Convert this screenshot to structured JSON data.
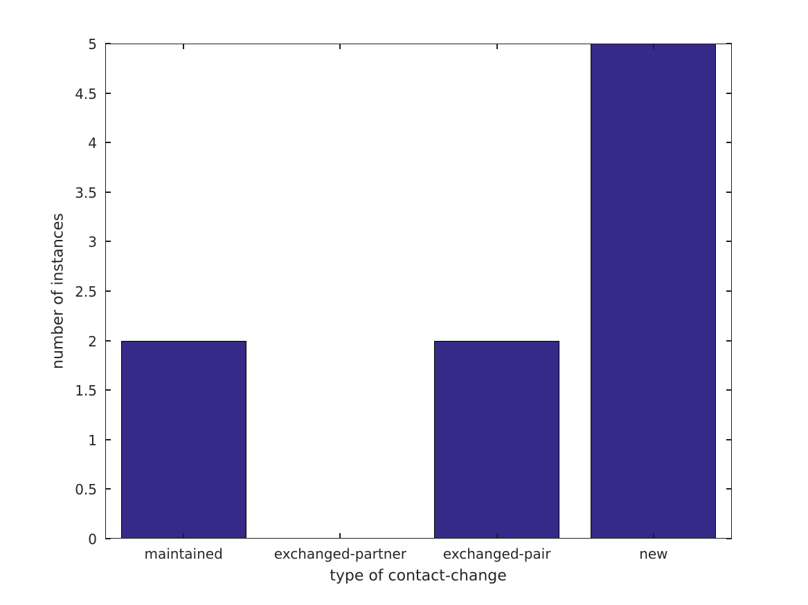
{
  "chart_data": {
    "type": "bar",
    "categories": [
      "maintained",
      "exchanged-partner",
      "exchanged-pair",
      "new"
    ],
    "values": [
      2,
      0,
      2,
      5
    ],
    "title": "",
    "xlabel": "type of contact-change",
    "ylabel": "number of instances",
    "ylim": [
      0,
      5
    ],
    "ytick_step": 0.5,
    "ytick_labels": [
      "0",
      "0.5",
      "1",
      "1.5",
      "2",
      "2.5",
      "3",
      "3.5",
      "4",
      "4.5",
      "5"
    ],
    "bar_width_fraction": 0.8,
    "grid": false,
    "legend": null,
    "colors": {
      "bar_fill": "#352A87",
      "bar_edge": "#000000",
      "axis": "#1f1f1f",
      "text": "#262626",
      "background": "#ffffff"
    }
  }
}
